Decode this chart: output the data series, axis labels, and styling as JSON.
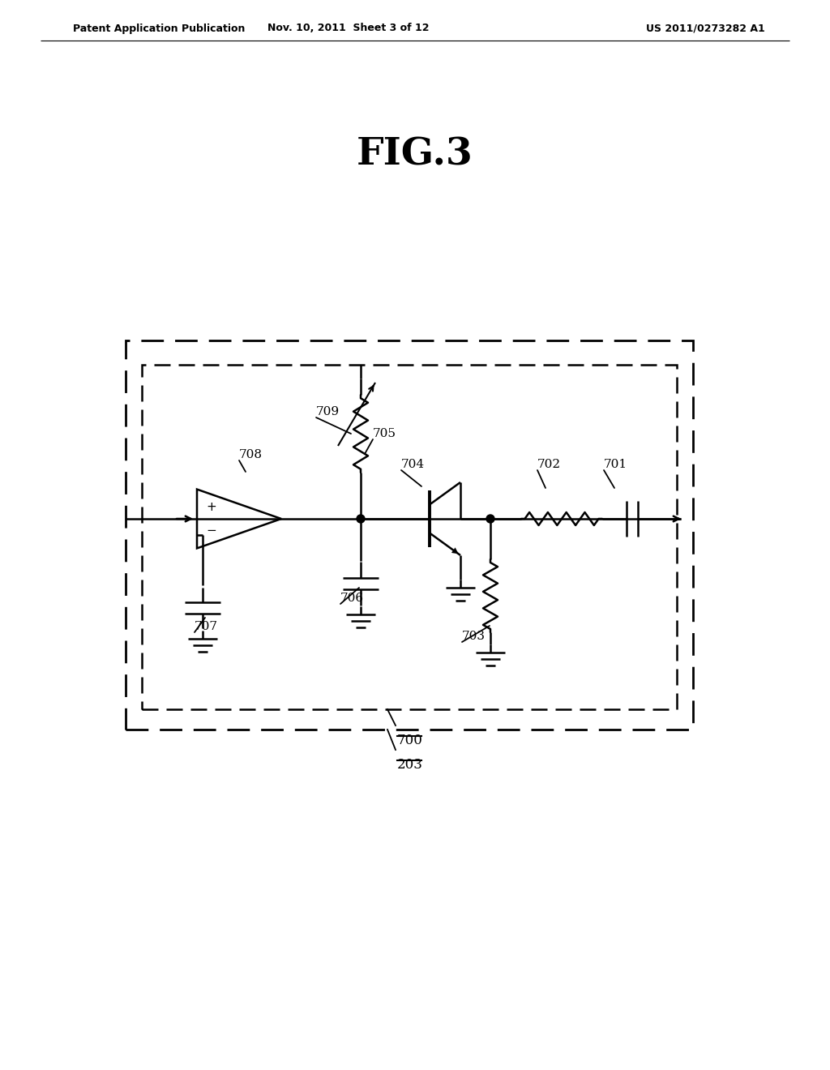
{
  "title": "FIG.3",
  "header_left": "Patent Application Publication",
  "header_mid": "Nov. 10, 2011  Sheet 3 of 12",
  "header_right": "US 2011/0273282 A1",
  "background_color": "#ffffff",
  "line_color": "#000000",
  "label_700": "700",
  "label_203": "203",
  "label_701": "701",
  "label_702": "702",
  "label_703": "703",
  "label_704": "704",
  "label_705": "705",
  "label_706": "706",
  "label_707": "707",
  "label_708": "708",
  "label_709": "709"
}
